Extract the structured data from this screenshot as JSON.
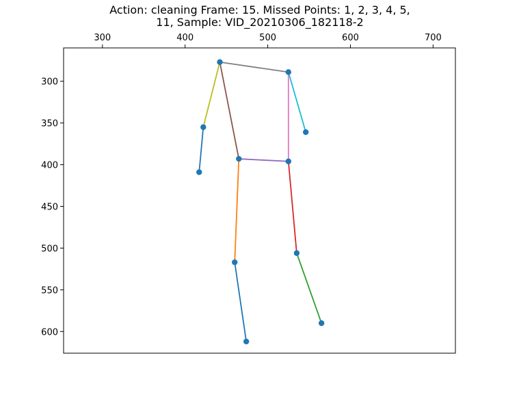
{
  "chart_data": {
    "type": "scatter",
    "title_lines": [
      "Action: cleaning   Frame: 15. Missed Points: 1, 2, 3, 4, 5,",
      "11,  Sample: VID_20210306_182118-2"
    ],
    "xlim": [
      253,
      727
    ],
    "ylim": [
      626,
      260
    ],
    "x_axis_position": "top",
    "y_inverted": true,
    "x_ticks": [
      300,
      400,
      500,
      600,
      700
    ],
    "y_ticks": [
      300,
      350,
      400,
      450,
      500,
      550,
      600
    ],
    "point_color": "#1f77b4",
    "points": [
      {
        "x": 442,
        "y": 277
      },
      {
        "x": 525,
        "y": 289
      },
      {
        "x": 422,
        "y": 355
      },
      {
        "x": 546,
        "y": 361
      },
      {
        "x": 417,
        "y": 409
      },
      {
        "x": 465,
        "y": 393
      },
      {
        "x": 525,
        "y": 396
      },
      {
        "x": 460,
        "y": 517
      },
      {
        "x": 535,
        "y": 506
      },
      {
        "x": 474,
        "y": 612
      },
      {
        "x": 565,
        "y": 590
      }
    ],
    "bones": [
      {
        "from": 0,
        "to": 1,
        "color": "#7f7f7f"
      },
      {
        "from": 0,
        "to": 2,
        "color": "#bcbd22"
      },
      {
        "from": 2,
        "to": 4,
        "color": "#1f77b4"
      },
      {
        "from": 1,
        "to": 3,
        "color": "#17becf"
      },
      {
        "from": 0,
        "to": 5,
        "color": "#8c564b"
      },
      {
        "from": 1,
        "to": 6,
        "color": "#e377c2"
      },
      {
        "from": 5,
        "to": 6,
        "color": "#9467bd"
      },
      {
        "from": 5,
        "to": 7,
        "color": "#ff7f0e"
      },
      {
        "from": 7,
        "to": 9,
        "color": "#1f77b4"
      },
      {
        "from": 6,
        "to": 8,
        "color": "#d62728"
      },
      {
        "from": 8,
        "to": 10,
        "color": "#2ca02c"
      }
    ]
  }
}
